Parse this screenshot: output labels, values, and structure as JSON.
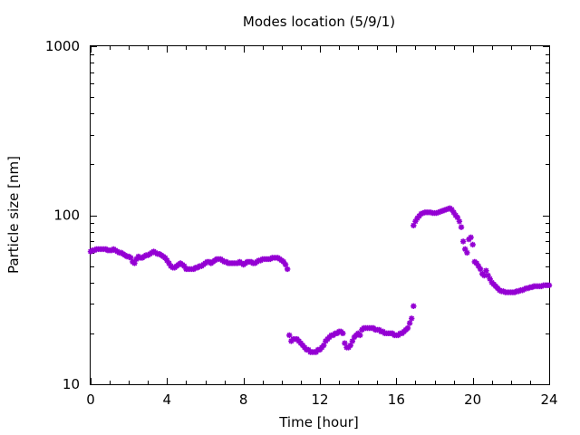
{
  "chart_data": {
    "type": "scatter",
    "title": "Modes location (5/9/1)",
    "xlabel": "Time [hour]",
    "ylabel": "Particle size [nm]",
    "xlim": [
      0,
      24
    ],
    "ylim": [
      10,
      1000
    ],
    "yscale": "log",
    "x_ticks": [
      0,
      4,
      8,
      12,
      16,
      20,
      24
    ],
    "y_ticks": [
      10,
      100,
      1000
    ],
    "x_tick_labels": [
      "0",
      "4",
      "8",
      "12",
      "16",
      "20",
      "24"
    ],
    "y_tick_labels": [
      "10",
      "100",
      "1000"
    ],
    "grid": false,
    "legend": "none",
    "marker": "star",
    "series": [
      {
        "color": "#9400d3",
        "points": [
          [
            0.0,
            61
          ],
          [
            0.1,
            62
          ],
          [
            0.2,
            62
          ],
          [
            0.3,
            63
          ],
          [
            0.4,
            63
          ],
          [
            0.5,
            63
          ],
          [
            0.6,
            63
          ],
          [
            0.7,
            63
          ],
          [
            0.8,
            63
          ],
          [
            0.9,
            62
          ],
          [
            1.0,
            62
          ],
          [
            1.1,
            62
          ],
          [
            1.2,
            63
          ],
          [
            1.3,
            62
          ],
          [
            1.4,
            61
          ],
          [
            1.5,
            60
          ],
          [
            1.6,
            60
          ],
          [
            1.7,
            59
          ],
          [
            1.8,
            58
          ],
          [
            1.9,
            57
          ],
          [
            2.0,
            57
          ],
          [
            2.1,
            56
          ],
          [
            2.2,
            53
          ],
          [
            2.3,
            52
          ],
          [
            2.4,
            55
          ],
          [
            2.5,
            57
          ],
          [
            2.6,
            56
          ],
          [
            2.7,
            56
          ],
          [
            2.8,
            57
          ],
          [
            2.9,
            58
          ],
          [
            3.0,
            58
          ],
          [
            3.1,
            59
          ],
          [
            3.2,
            60
          ],
          [
            3.3,
            61
          ],
          [
            3.4,
            60
          ],
          [
            3.5,
            59
          ],
          [
            3.6,
            59
          ],
          [
            3.7,
            58
          ],
          [
            3.8,
            57
          ],
          [
            3.9,
            56
          ],
          [
            4.0,
            54
          ],
          [
            4.1,
            52
          ],
          [
            4.2,
            50
          ],
          [
            4.3,
            49
          ],
          [
            4.4,
            49
          ],
          [
            4.5,
            50
          ],
          [
            4.6,
            51
          ],
          [
            4.7,
            52
          ],
          [
            4.8,
            51
          ],
          [
            4.9,
            50
          ],
          [
            5.0,
            48
          ],
          [
            5.1,
            48
          ],
          [
            5.2,
            48
          ],
          [
            5.3,
            48
          ],
          [
            5.4,
            48
          ],
          [
            5.5,
            49
          ],
          [
            5.6,
            49
          ],
          [
            5.7,
            50
          ],
          [
            5.8,
            50
          ],
          [
            5.9,
            51
          ],
          [
            6.0,
            52
          ],
          [
            6.1,
            53
          ],
          [
            6.2,
            53
          ],
          [
            6.3,
            52
          ],
          [
            6.4,
            53
          ],
          [
            6.5,
            54
          ],
          [
            6.6,
            55
          ],
          [
            6.7,
            55
          ],
          [
            6.8,
            55
          ],
          [
            6.9,
            54
          ],
          [
            7.0,
            53
          ],
          [
            7.1,
            53
          ],
          [
            7.2,
            52
          ],
          [
            7.3,
            52
          ],
          [
            7.4,
            52
          ],
          [
            7.5,
            52
          ],
          [
            7.6,
            52
          ],
          [
            7.7,
            52
          ],
          [
            7.8,
            53
          ],
          [
            7.9,
            52
          ],
          [
            8.0,
            51
          ],
          [
            8.1,
            52
          ],
          [
            8.2,
            53
          ],
          [
            8.3,
            53
          ],
          [
            8.4,
            53
          ],
          [
            8.5,
            52
          ],
          [
            8.6,
            52
          ],
          [
            8.7,
            53
          ],
          [
            8.8,
            54
          ],
          [
            8.9,
            54
          ],
          [
            9.0,
            55
          ],
          [
            9.1,
            55
          ],
          [
            9.2,
            55
          ],
          [
            9.3,
            55
          ],
          [
            9.4,
            55
          ],
          [
            9.5,
            56
          ],
          [
            9.6,
            56
          ],
          [
            9.7,
            56
          ],
          [
            9.8,
            56
          ],
          [
            9.9,
            55
          ],
          [
            10.0,
            54
          ],
          [
            10.1,
            53
          ],
          [
            10.2,
            51
          ],
          [
            10.3,
            48
          ],
          [
            10.4,
            19.5
          ],
          [
            10.5,
            18.0
          ],
          [
            10.6,
            18.5
          ],
          [
            10.7,
            18.5
          ],
          [
            10.8,
            18.5
          ],
          [
            10.9,
            18.0
          ],
          [
            11.0,
            17.5
          ],
          [
            11.1,
            17.0
          ],
          [
            11.2,
            16.5
          ],
          [
            11.3,
            16.0
          ],
          [
            11.4,
            16.0
          ],
          [
            11.5,
            15.5
          ],
          [
            11.6,
            15.5
          ],
          [
            11.7,
            15.5
          ],
          [
            11.8,
            15.5
          ],
          [
            11.9,
            16.0
          ],
          [
            12.0,
            16.0
          ],
          [
            12.1,
            16.5
          ],
          [
            12.2,
            17.0
          ],
          [
            12.3,
            18.0
          ],
          [
            12.4,
            18.5
          ],
          [
            12.5,
            19.0
          ],
          [
            12.6,
            19.5
          ],
          [
            12.7,
            19.5
          ],
          [
            12.8,
            20.0
          ],
          [
            12.9,
            20.0
          ],
          [
            13.0,
            20.5
          ],
          [
            13.1,
            20.5
          ],
          [
            13.2,
            20.0
          ],
          [
            13.3,
            17.5
          ],
          [
            13.4,
            16.5
          ],
          [
            13.5,
            16.5
          ],
          [
            13.6,
            17.0
          ],
          [
            13.7,
            18.0
          ],
          [
            13.8,
            19.0
          ],
          [
            13.9,
            19.5
          ],
          [
            14.0,
            20.0
          ],
          [
            14.1,
            19.5
          ],
          [
            14.2,
            21.0
          ],
          [
            14.3,
            21.5
          ],
          [
            14.4,
            21.5
          ],
          [
            14.5,
            21.5
          ],
          [
            14.6,
            21.5
          ],
          [
            14.7,
            21.5
          ],
          [
            14.8,
            21.5
          ],
          [
            14.9,
            21.0
          ],
          [
            15.0,
            21.0
          ],
          [
            15.1,
            21.0
          ],
          [
            15.2,
            20.5
          ],
          [
            15.3,
            20.5
          ],
          [
            15.4,
            20.0
          ],
          [
            15.5,
            20.0
          ],
          [
            15.6,
            20.0
          ],
          [
            15.7,
            20.0
          ],
          [
            15.8,
            20.0
          ],
          [
            15.9,
            19.5
          ],
          [
            16.0,
            19.5
          ],
          [
            16.1,
            19.5
          ],
          [
            16.2,
            20.0
          ],
          [
            16.3,
            20.0
          ],
          [
            16.4,
            20.5
          ],
          [
            16.5,
            21.0
          ],
          [
            16.6,
            21.5
          ],
          [
            16.7,
            23.0
          ],
          [
            16.8,
            24.5
          ],
          [
            16.9,
            29.0
          ],
          [
            16.9,
            87
          ],
          [
            17.0,
            92
          ],
          [
            17.1,
            96
          ],
          [
            17.2,
            99
          ],
          [
            17.3,
            102
          ],
          [
            17.4,
            103
          ],
          [
            17.5,
            104
          ],
          [
            17.6,
            104
          ],
          [
            17.7,
            104
          ],
          [
            17.8,
            104
          ],
          [
            17.9,
            103
          ],
          [
            18.0,
            103
          ],
          [
            18.1,
            103
          ],
          [
            18.2,
            104
          ],
          [
            18.3,
            105
          ],
          [
            18.4,
            106
          ],
          [
            18.5,
            107
          ],
          [
            18.6,
            108
          ],
          [
            18.7,
            109
          ],
          [
            18.8,
            110
          ],
          [
            18.9,
            108
          ],
          [
            19.0,
            104
          ],
          [
            19.1,
            100
          ],
          [
            19.2,
            97
          ],
          [
            19.3,
            92
          ],
          [
            19.4,
            85
          ],
          [
            19.5,
            70
          ],
          [
            19.6,
            63
          ],
          [
            19.7,
            60
          ],
          [
            19.8,
            72
          ],
          [
            19.9,
            74
          ],
          [
            20.0,
            67
          ],
          [
            20.1,
            53
          ],
          [
            20.2,
            52
          ],
          [
            20.3,
            50
          ],
          [
            20.4,
            48
          ],
          [
            20.5,
            45
          ],
          [
            20.6,
            44
          ],
          [
            20.7,
            47
          ],
          [
            20.8,
            44
          ],
          [
            20.9,
            42
          ],
          [
            21.0,
            40
          ],
          [
            21.1,
            39
          ],
          [
            21.2,
            38
          ],
          [
            21.3,
            37
          ],
          [
            21.4,
            36
          ],
          [
            21.5,
            35.5
          ],
          [
            21.6,
            35.5
          ],
          [
            21.7,
            35
          ],
          [
            21.8,
            35
          ],
          [
            21.9,
            35
          ],
          [
            22.0,
            35
          ],
          [
            22.1,
            35
          ],
          [
            22.2,
            35
          ],
          [
            22.3,
            35.5
          ],
          [
            22.4,
            35.5
          ],
          [
            22.5,
            36
          ],
          [
            22.6,
            36
          ],
          [
            22.7,
            36.5
          ],
          [
            22.8,
            37
          ],
          [
            22.9,
            37
          ],
          [
            23.0,
            37.5
          ],
          [
            23.1,
            37.5
          ],
          [
            23.2,
            38
          ],
          [
            23.3,
            38
          ],
          [
            23.4,
            38
          ],
          [
            23.5,
            38
          ],
          [
            23.6,
            38
          ],
          [
            23.7,
            38.5
          ],
          [
            23.8,
            38.5
          ],
          [
            23.9,
            38.5
          ],
          [
            24.0,
            38.5
          ]
        ]
      }
    ]
  }
}
